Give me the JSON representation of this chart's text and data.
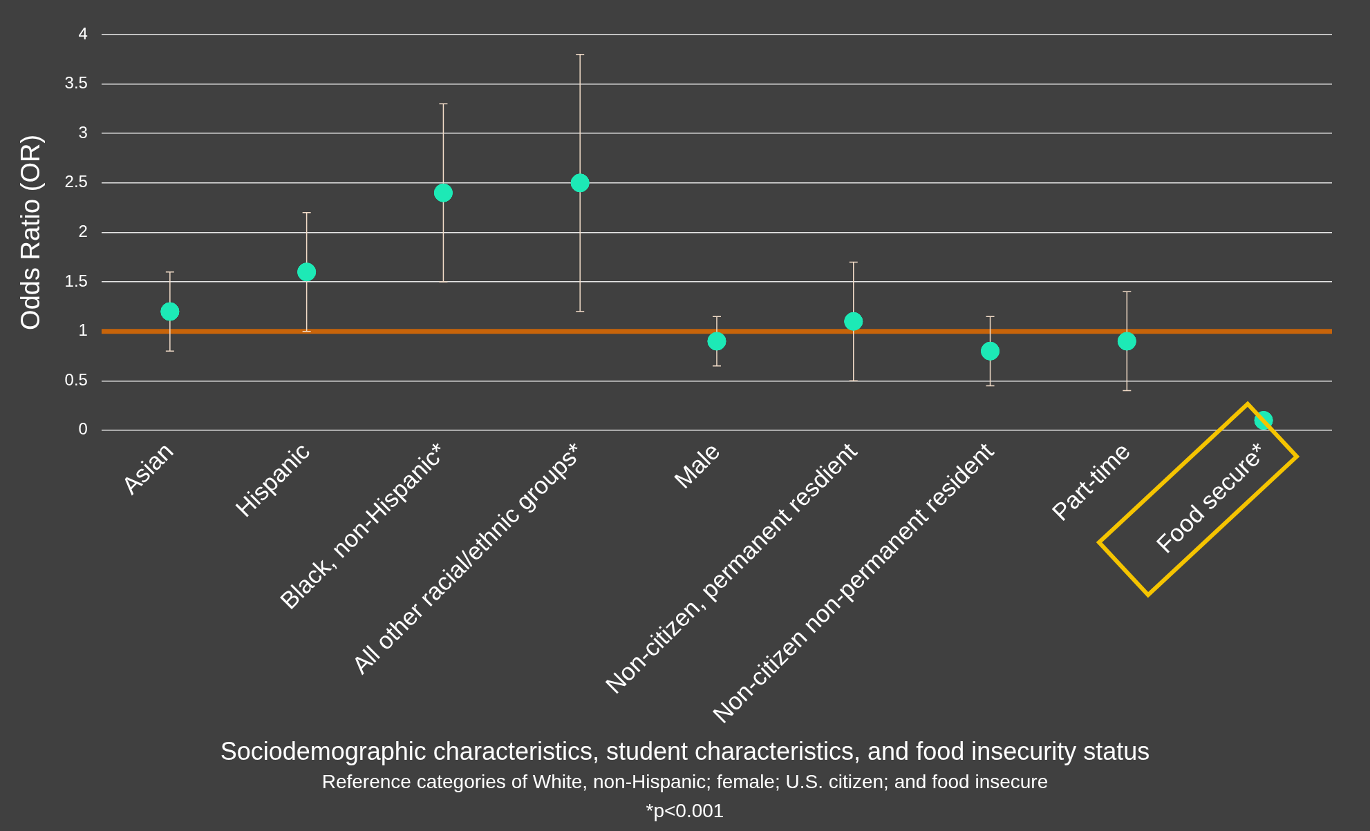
{
  "chart_data": {
    "type": "scatter",
    "xlabel": "Sociodemographic characteristics, student characteristics, and food insecurity status",
    "ylabel": "Odds Ratio (OR)",
    "annotations": [
      "Reference categories of White, non-Hispanic; female; U.S. citizen; and food insecure",
      "*p<0.001"
    ],
    "categories": [
      "Asian",
      "Hispanic",
      "Black, non-Hispanic*",
      "All other racial/ethnic groups*",
      "Male",
      "Non-citizen, permanent resdient",
      "Non-citizen non-permanent resident",
      "Part-time",
      "Food secure*"
    ],
    "values": [
      1.2,
      1.6,
      2.4,
      2.5,
      0.9,
      1.1,
      0.8,
      0.9,
      0.1
    ],
    "errors": [
      [
        0.8,
        1.6
      ],
      [
        1.0,
        2.2
      ],
      [
        1.5,
        3.3
      ],
      [
        1.2,
        3.8
      ],
      [
        0.65,
        1.15
      ],
      [
        0.5,
        1.7
      ],
      [
        0.45,
        1.15
      ],
      [
        0.4,
        1.4
      ],
      null
    ],
    "color": "#1de9b6",
    "marker": "circle",
    "grid": "y",
    "ylim": [
      0,
      4
    ],
    "yticks": [
      0,
      0.5,
      1,
      1.5,
      2,
      2.5,
      3,
      3.5,
      4
    ],
    "ref_lines": [
      {
        "axis": "y",
        "value": 1,
        "color": "#c8640a"
      }
    ]
  }
}
